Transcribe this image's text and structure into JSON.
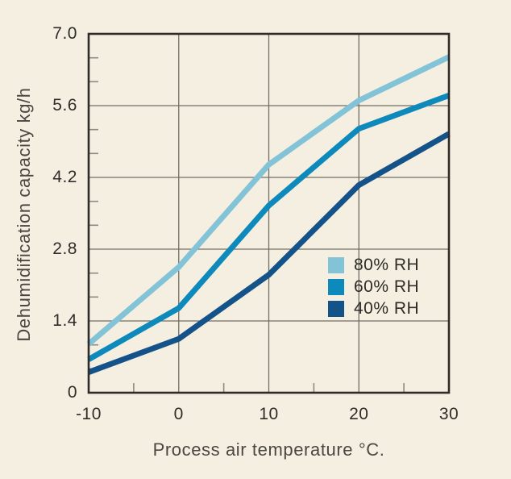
{
  "colors": {
    "background": "#F5EFE1",
    "axis_border": "#2E2B28",
    "gridline": "#716D66",
    "minor_tick": "#8F8B83",
    "tick_text": "#2F2D2A",
    "axis_title_text": "#4A4742"
  },
  "chart_data": {
    "type": "line",
    "title": "",
    "xlabel": "Process air temperature °C.",
    "ylabel": "Dehumidification capacity kg/h",
    "x": [
      -10,
      0,
      10,
      20,
      30
    ],
    "x_tick_labels": [
      "-10",
      "0",
      "10",
      "20",
      "30"
    ],
    "y_ticks": [
      0,
      1.4,
      2.8,
      4.2,
      5.6,
      7.0
    ],
    "y_tick_labels": [
      "0",
      "1.4",
      "2.8",
      "4.2",
      "5.6",
      "7.0"
    ],
    "xlim": [
      -10,
      30
    ],
    "ylim": [
      0,
      7.0
    ],
    "x_minor_ticks": [
      -5,
      5,
      15,
      25
    ],
    "y_minor_ticks": [
      0.467,
      0.933,
      1.867,
      2.333,
      3.267,
      3.733,
      4.667,
      5.133,
      6.067,
      6.533
    ],
    "grid": true,
    "legend_position": "inside-right",
    "series": [
      {
        "name": "80% RH",
        "color": "#82C3D8",
        "values": [
          0.95,
          2.45,
          4.45,
          5.7,
          6.55
        ]
      },
      {
        "name": "60% RH",
        "color": "#0E89BC",
        "values": [
          0.65,
          1.65,
          3.65,
          5.15,
          5.8
        ]
      },
      {
        "name": "40% RH",
        "color": "#14528A",
        "values": [
          0.4,
          1.05,
          2.3,
          4.05,
          5.05
        ]
      }
    ]
  }
}
